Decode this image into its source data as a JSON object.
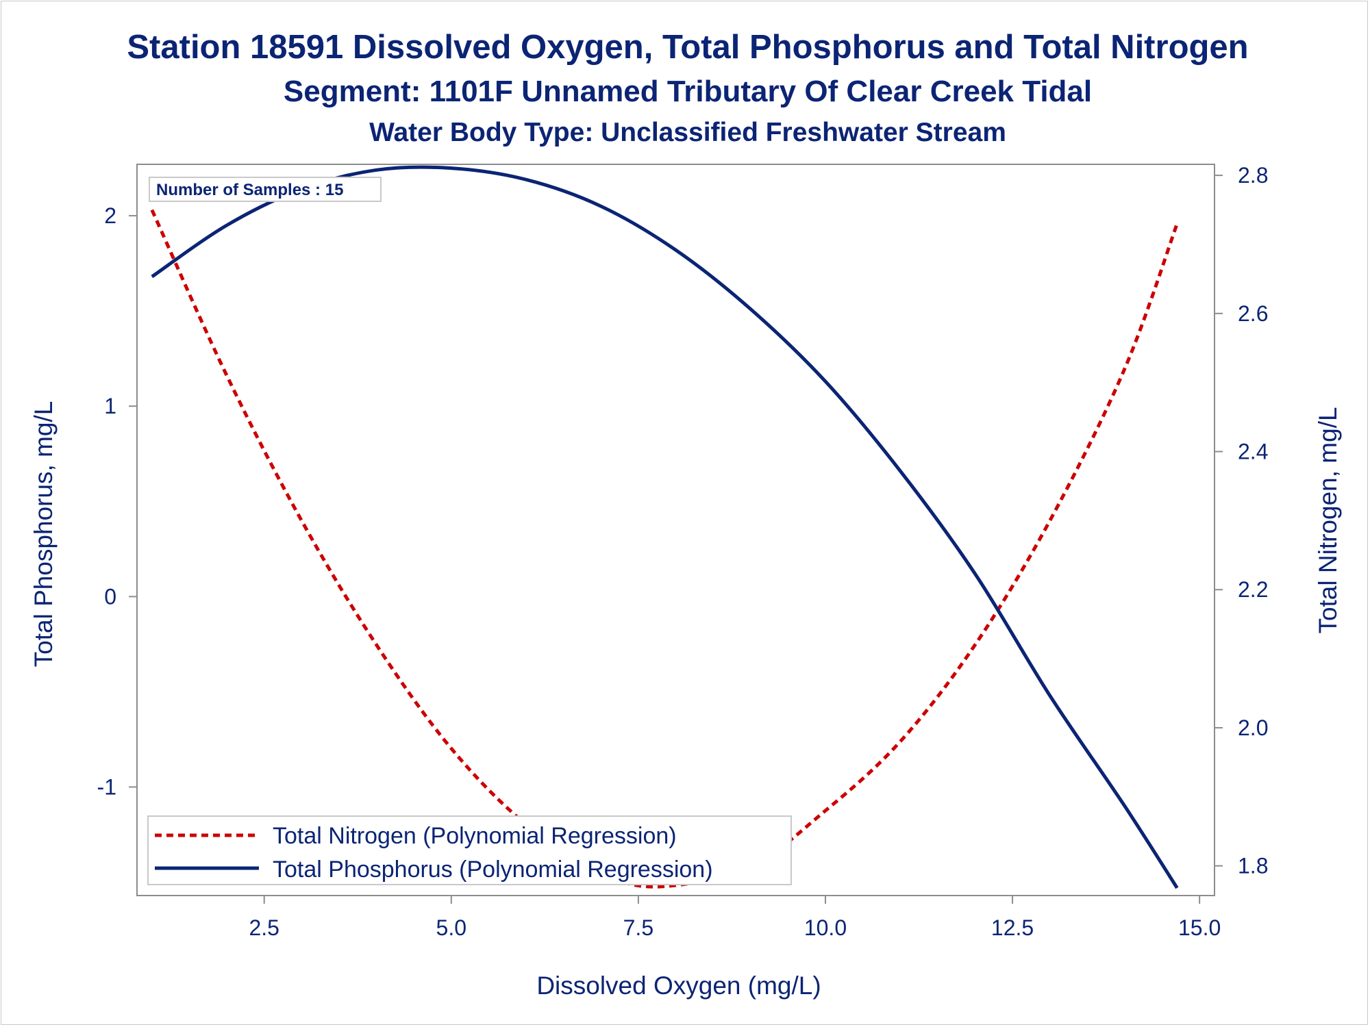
{
  "chart_data": {
    "type": "line",
    "title": "Station 18591  Dissolved Oxygen, Total Phosphorus and Total Nitrogen",
    "subtitle": "Segment: 1101F  Unnamed Tributary Of Clear Creek Tidal",
    "subtitle2": "Water Body Type: Unclassified Freshwater Stream",
    "xlabel": "Dissolved Oxygen (mg/L)",
    "ylabel_left": "Total Phosphorus, mg/L",
    "ylabel_right": "Total Nitrogen, mg/L",
    "xlim": [
      0.8,
      15.2
    ],
    "ylim_left": [
      -1.57,
      2.27
    ],
    "ylim_right": [
      1.757,
      2.816
    ],
    "x_ticks": [
      2.5,
      5.0,
      7.5,
      10.0,
      12.5,
      15.0
    ],
    "x_tick_labels": [
      "2.5",
      "5.0",
      "7.5",
      "10.0",
      "12.5",
      "15.0"
    ],
    "y_left_ticks": [
      -1,
      0,
      1,
      2
    ],
    "y_left_tick_labels": [
      "-1",
      "0",
      "1",
      "2"
    ],
    "y_right_ticks": [
      1.8,
      2.0,
      2.2,
      2.4,
      2.6,
      2.8
    ],
    "y_right_tick_labels": [
      "1.8",
      "2.0",
      "2.2",
      "2.4",
      "2.6",
      "2.8"
    ],
    "inset_text": "Number of Samples : 15",
    "legend_position": "bottom-left",
    "series": [
      {
        "name": "Total Nitrogen (Polynomial Regression)",
        "axis": "right",
        "style": "dashed",
        "color": "#cc0000",
        "x": [
          1.0,
          2.0,
          3.0,
          4.0,
          5.0,
          6.0,
          7.0,
          7.8,
          9.0,
          10.0,
          11.0,
          12.0,
          13.0,
          14.0,
          14.7
        ],
        "y": [
          2.75,
          2.51,
          2.3,
          2.12,
          1.97,
          1.86,
          1.79,
          1.77,
          1.8,
          1.88,
          1.98,
          2.12,
          2.3,
          2.52,
          2.73
        ]
      },
      {
        "name": "Total Phosphorus (Polynomial Regression)",
        "axis": "left",
        "style": "solid",
        "color": "#0b2474",
        "x": [
          1.0,
          2.0,
          3.0,
          4.0,
          5.0,
          6.0,
          7.0,
          8.0,
          9.0,
          10.0,
          11.0,
          12.0,
          13.0,
          14.0,
          14.7
        ],
        "y": [
          1.68,
          1.95,
          2.14,
          2.24,
          2.25,
          2.19,
          2.05,
          1.82,
          1.51,
          1.13,
          0.66,
          0.12,
          -0.52,
          -1.1,
          -1.53
        ]
      }
    ]
  }
}
